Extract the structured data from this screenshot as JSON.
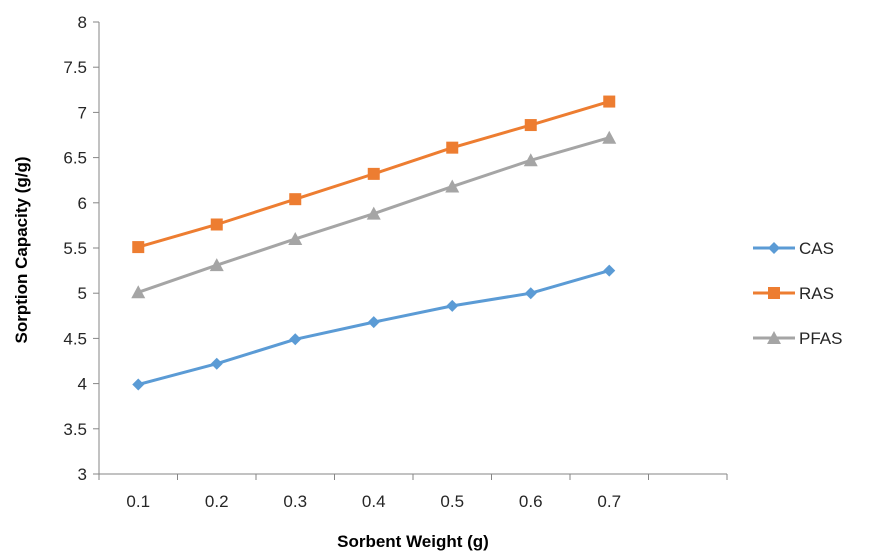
{
  "chart_data": {
    "type": "line",
    "title": "",
    "xlabel": "Sorbent Weight (g)",
    "ylabel": "Sorption Capacity (g/g)",
    "categories": [
      "0.1",
      "0.2",
      "0.3",
      "0.4",
      "0.5",
      "0.6",
      "0.7"
    ],
    "ylim": [
      3,
      8
    ],
    "yticks": [
      "3",
      "3.5",
      "4",
      "4.5",
      "5",
      "5.5",
      "6",
      "6.5",
      "7",
      "7.5",
      "8"
    ],
    "grid": false,
    "legend_position": "right",
    "series": [
      {
        "name": "CAS",
        "color": "#5B9BD5",
        "marker": "diamond",
        "values": [
          3.99,
          4.22,
          4.49,
          4.68,
          4.86,
          5.0,
          5.25
        ]
      },
      {
        "name": "RAS",
        "color": "#ED7D31",
        "marker": "square",
        "values": [
          5.51,
          5.76,
          6.04,
          6.32,
          6.61,
          6.86,
          7.12
        ]
      },
      {
        "name": "PFAS",
        "color": "#A5A5A5",
        "marker": "triangle",
        "values": [
          5.01,
          5.31,
          5.6,
          5.88,
          6.18,
          6.47,
          6.72
        ]
      }
    ]
  }
}
